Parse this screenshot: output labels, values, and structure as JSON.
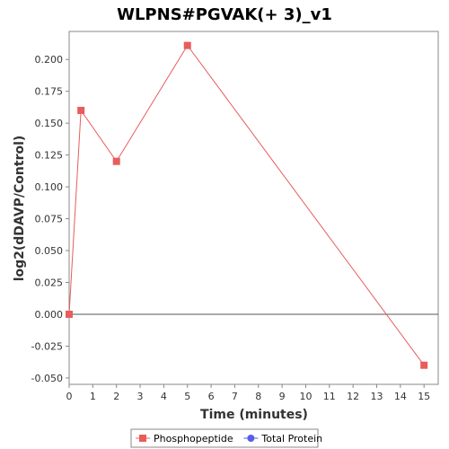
{
  "chart_data": {
    "type": "line",
    "title": "WLPNS#PGVAK(+ 3)_v1",
    "xlabel": "Time (minutes)",
    "ylabel": "log2(dDAVP/Control)",
    "xlim": [
      0,
      15.6
    ],
    "ylim": [
      -0.055,
      0.222
    ],
    "xticks": [
      0,
      1,
      2,
      3,
      4,
      5,
      6,
      7,
      8,
      9,
      10,
      11,
      12,
      13,
      14,
      15
    ],
    "yticks": [
      -0.05,
      -0.025,
      0.0,
      0.025,
      0.05,
      0.075,
      0.1,
      0.125,
      0.15,
      0.175,
      0.2
    ],
    "ytick_labels": [
      "-0.050",
      "-0.025",
      "0.000",
      "0.025",
      "0.050",
      "0.075",
      "0.100",
      "0.125",
      "0.150",
      "0.175",
      "0.200"
    ],
    "zero_line": 0,
    "grid": false,
    "legend_position": "bottom",
    "series": [
      {
        "name": "Phosphopeptide",
        "color": "#e85c5c",
        "marker": "square",
        "x": [
          0,
          0.5,
          2,
          5,
          15
        ],
        "y": [
          0.0,
          0.16,
          0.12,
          0.211,
          -0.04
        ]
      },
      {
        "name": "Total Protein",
        "color": "#5b5bea",
        "marker": "circle",
        "x": [],
        "y": []
      }
    ]
  }
}
